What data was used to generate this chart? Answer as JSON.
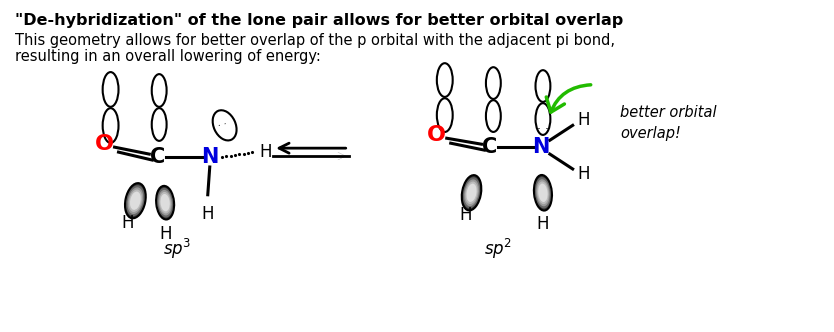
{
  "title": "\"De-hybridization\" of the lone pair allows for better orbital overlap",
  "subtitle_line1": "This geometry allows for better overlap of the p orbital with the adjacent pi bond,",
  "subtitle_line2": "resulting in an overall lowering of energy:",
  "sp3_label": "sp$^3$",
  "sp2_label": "sp$^2$",
  "annotation": "better orbital\noverlap!",
  "bg_color": "#ffffff",
  "title_fontsize": 11.5,
  "subtitle_fontsize": 10.5,
  "label_fontsize": 12
}
